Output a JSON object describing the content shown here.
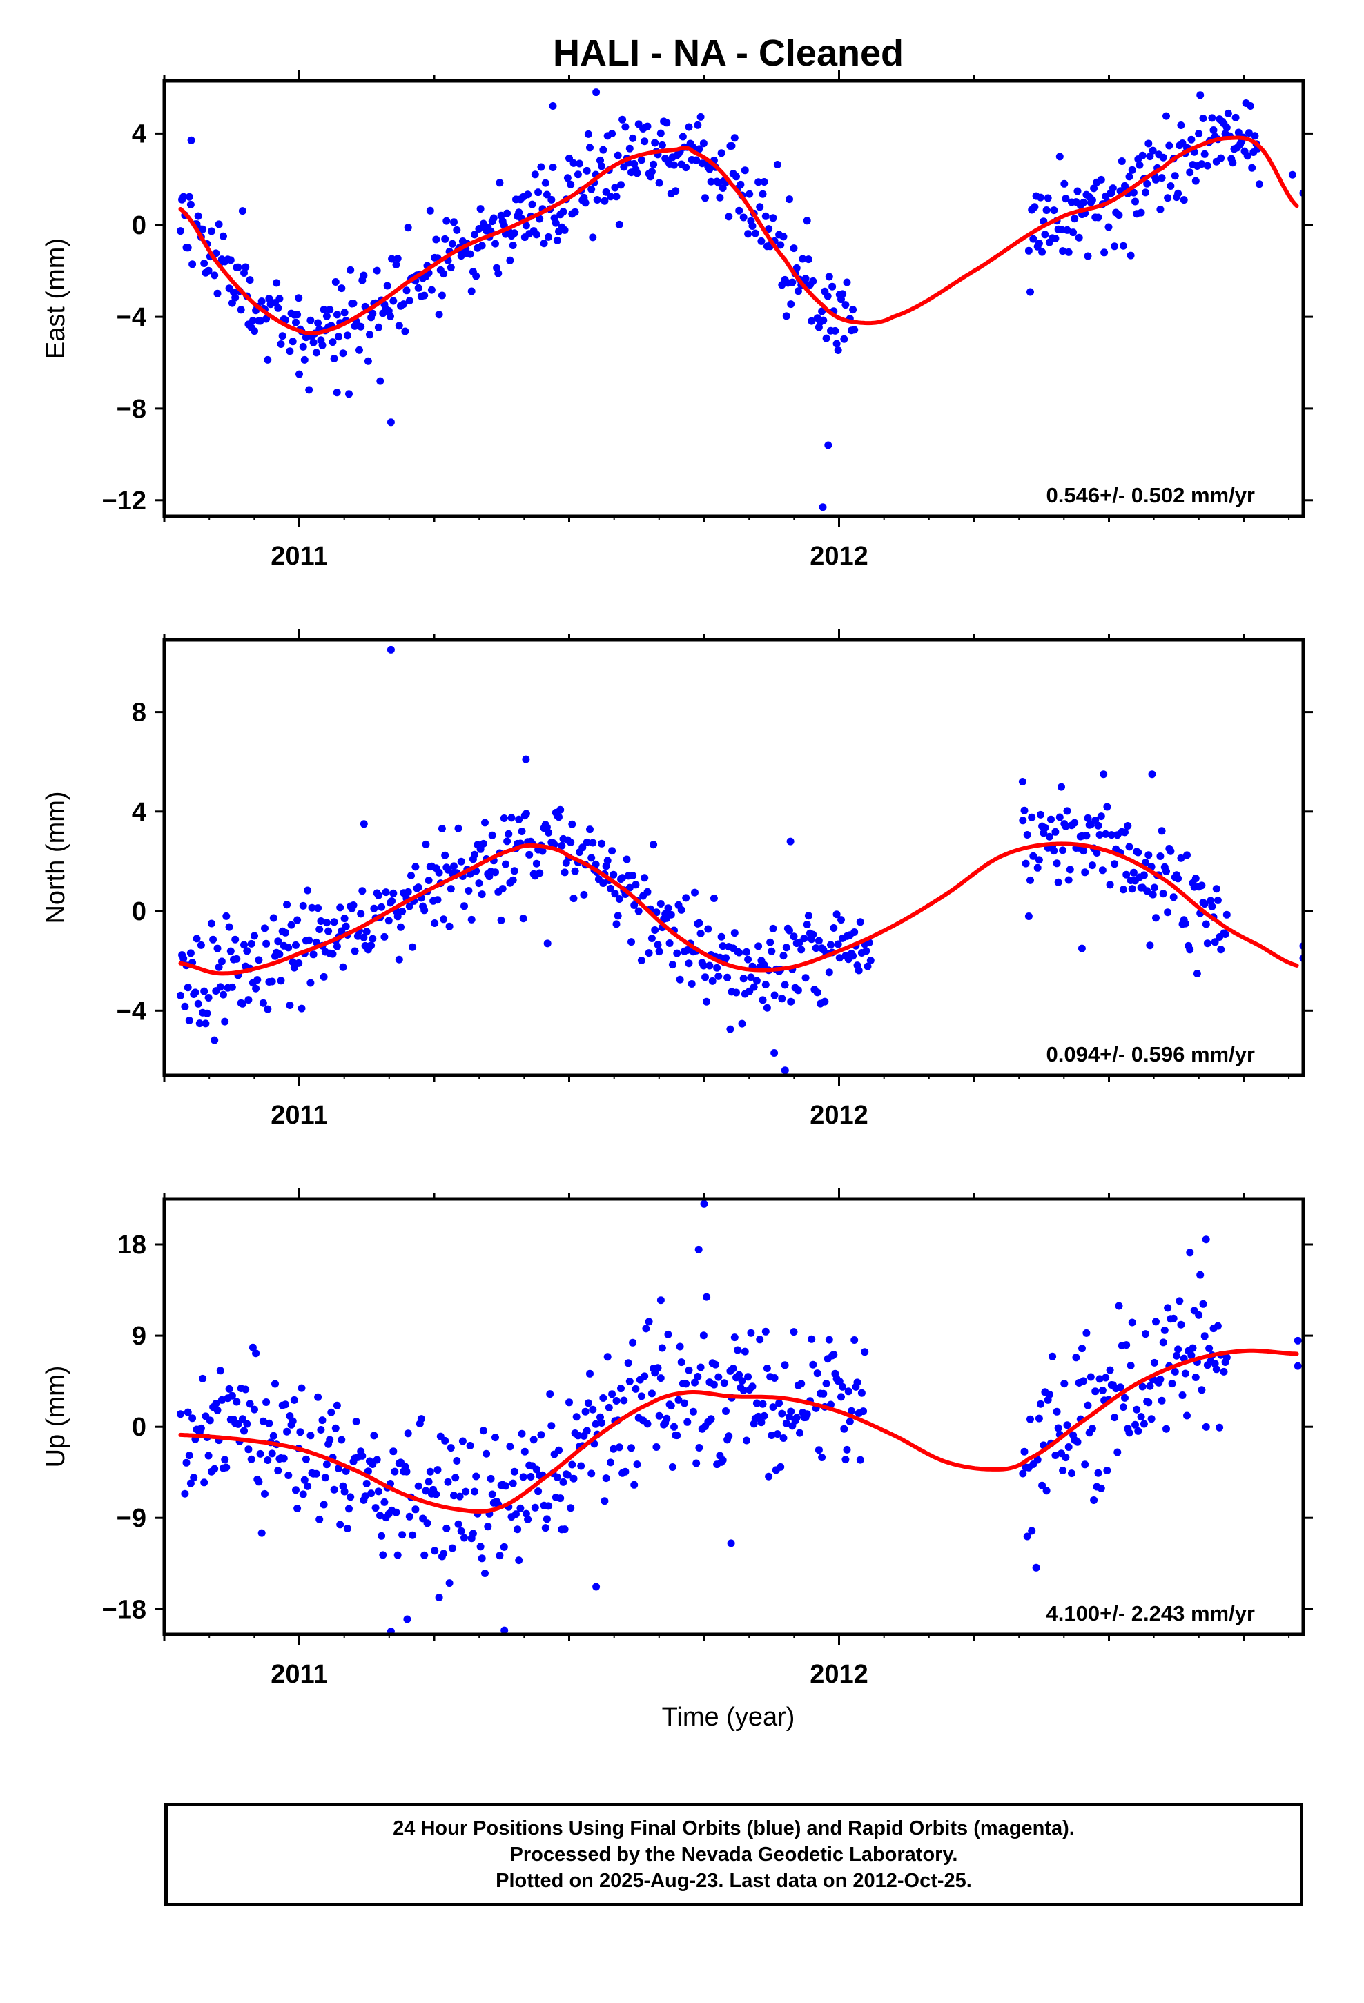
{
  "title": "HALI  - NA - Cleaned",
  "xlabel": "Time (year)",
  "footer": {
    "line1": "24 Hour Positions Using Final Orbits (blue) and Rapid Orbits (magenta).",
    "line2": "Processed by the Nevada Geodetic Laboratory.",
    "line3": "Plotted on 2025-Aug-23. Last data on 2012-Oct-25."
  },
  "colors": {
    "points": "#0000ff",
    "fit": "#ff0000",
    "axes": "#000000"
  },
  "chart_data": [
    {
      "type": "scatter",
      "name": "east",
      "ylabel": "East (mm)",
      "rate_label": "0.546+/- 0.502 mm/yr",
      "xlim": [
        2010.75,
        2012.86
      ],
      "ylim": [
        -12.7,
        6.3
      ],
      "x_ticks": [
        2011,
        2012
      ],
      "y_ticks": [
        -12,
        -8,
        -4,
        0,
        4
      ],
      "y_tick_labels": [
        "−12",
        "−8",
        "−4",
        "0",
        "4"
      ],
      "fit_knots": {
        "x": [
          2010.78,
          2010.85,
          2010.92,
          2011.0,
          2011.05,
          2011.12,
          2011.2,
          2011.3,
          2011.4,
          2011.5,
          2011.6,
          2011.7,
          2011.73,
          2011.8,
          2011.9,
          2011.97,
          2012.02,
          2012.1,
          2012.25,
          2012.4,
          2012.5,
          2012.6,
          2012.65,
          2012.72,
          2012.78,
          2012.85
        ],
        "y": [
          0.7,
          -1.7,
          -3.5,
          -4.6,
          -4.6,
          -3.8,
          -2.5,
          -1.0,
          0.0,
          1.2,
          2.8,
          3.3,
          3.2,
          1.8,
          -1.5,
          -3.5,
          -4.2,
          -4.0,
          -2.0,
          0.2,
          1.0,
          2.5,
          3.3,
          3.8,
          3.4,
          0.8
        ]
      },
      "noise_sd": 1.0,
      "gaps": [
        [
          2012.03,
          2012.35
        ],
        [
          2012.78,
          2012.84
        ]
      ],
      "seed": 11,
      "outliers": [
        [
          2011.17,
          -8.6
        ],
        [
          2011.15,
          -6.8
        ],
        [
          2011.98,
          -9.6
        ],
        [
          2011.97,
          -12.3
        ],
        [
          2011.55,
          5.8
        ],
        [
          2011.47,
          5.2
        ],
        [
          2010.8,
          3.7
        ],
        [
          2011.0,
          -6.5
        ],
        [
          2011.07,
          -7.3
        ],
        [
          2012.84,
          2.2
        ],
        [
          2012.86,
          1.4
        ]
      ]
    },
    {
      "type": "scatter",
      "name": "north",
      "ylabel": "North (mm)",
      "rate_label": "0.094+/- 0.596 mm/yr",
      "xlim": [
        2010.75,
        2012.86
      ],
      "ylim": [
        -6.6,
        10.9
      ],
      "x_ticks": [
        2011,
        2012
      ],
      "y_ticks": [
        -4,
        0,
        4,
        8
      ],
      "y_tick_labels": [
        "−4",
        "0",
        "4",
        "8"
      ],
      "fit_knots": {
        "x": [
          2010.78,
          2010.85,
          2010.92,
          2011.0,
          2011.1,
          2011.2,
          2011.3,
          2011.4,
          2011.45,
          2011.5,
          2011.6,
          2011.7,
          2011.8,
          2011.9,
          2012.0,
          2012.1,
          2012.2,
          2012.3,
          2012.4,
          2012.5,
          2012.6,
          2012.7,
          2012.78,
          2012.85
        ],
        "y": [
          -2.1,
          -2.5,
          -2.3,
          -1.7,
          -0.8,
          0.4,
          1.5,
          2.5,
          2.6,
          2.2,
          0.9,
          -1.0,
          -2.2,
          -2.3,
          -1.6,
          -0.6,
          0.7,
          2.2,
          2.7,
          2.4,
          1.3,
          -0.4,
          -1.4,
          -2.2
        ]
      },
      "noise_sd": 1.0,
      "gaps": [
        [
          2012.06,
          2012.34
        ],
        [
          2012.72,
          2012.84
        ]
      ],
      "seed": 23,
      "outliers": [
        [
          2011.17,
          10.5
        ],
        [
          2011.42,
          6.1
        ],
        [
          2011.46,
          -1.3
        ],
        [
          2011.9,
          -6.4
        ],
        [
          2011.88,
          -5.7
        ],
        [
          2011.91,
          2.8
        ],
        [
          2011.12,
          3.5
        ],
        [
          2012.34,
          5.2
        ],
        [
          2012.49,
          5.5
        ],
        [
          2012.58,
          5.5
        ],
        [
          2012.86,
          -1.4
        ],
        [
          2012.86,
          -1.9
        ],
        [
          2012.45,
          -1.5
        ]
      ]
    },
    {
      "type": "scatter",
      "name": "up",
      "ylabel": "Up (mm)",
      "rate_label": "4.100+/- 2.243 mm/yr",
      "xlim": [
        2010.75,
        2012.86
      ],
      "ylim": [
        -20.5,
        22.5
      ],
      "x_ticks": [
        2011,
        2012
      ],
      "y_ticks": [
        -18,
        -9,
        0,
        9,
        18
      ],
      "y_tick_labels": [
        "−18",
        "−9",
        "0",
        "9",
        "18"
      ],
      "fit_knots": {
        "x": [
          2010.78,
          2010.9,
          2011.0,
          2011.1,
          2011.2,
          2011.3,
          2011.37,
          2011.45,
          2011.55,
          2011.65,
          2011.72,
          2011.8,
          2011.9,
          2012.0,
          2012.1,
          2012.2,
          2012.3,
          2012.35,
          2012.45,
          2012.55,
          2012.65,
          2012.75,
          2012.85
        ],
        "y": [
          -0.8,
          -1.3,
          -2.2,
          -4.2,
          -6.8,
          -8.2,
          -8.0,
          -5.2,
          -1.0,
          2.3,
          3.4,
          3.0,
          2.8,
          1.5,
          -0.8,
          -3.5,
          -4.2,
          -3.2,
          0.5,
          4.2,
          6.5,
          7.5,
          7.2
        ]
      },
      "noise_sd": 3.8,
      "gaps": [
        [
          2012.05,
          2012.34
        ],
        [
          2012.72,
          2012.84
        ]
      ],
      "seed": 37,
      "outliers": [
        [
          2011.75,
          22.0
        ],
        [
          2011.74,
          17.5
        ],
        [
          2011.67,
          12.5
        ],
        [
          2011.55,
          -15.8
        ],
        [
          2011.17,
          -20.2
        ],
        [
          2011.2,
          -19.0
        ],
        [
          2011.38,
          -20.1
        ],
        [
          2011.8,
          -11.5
        ],
        [
          2012.68,
          18.5
        ],
        [
          2012.65,
          17.2
        ],
        [
          2012.85,
          8.5
        ],
        [
          2012.85,
          6.0
        ]
      ]
    }
  ]
}
